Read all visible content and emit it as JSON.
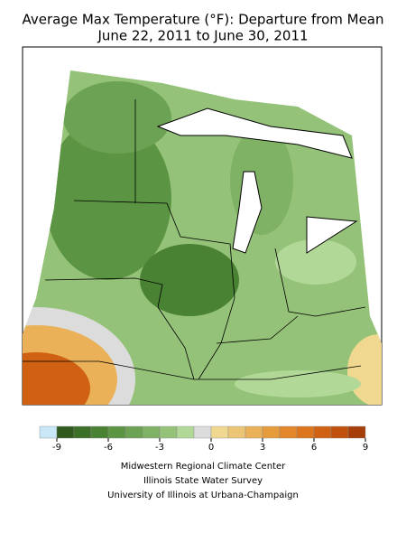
{
  "header": {
    "title": "Average Max Temperature (°F): Departure from Mean",
    "subtitle": "June 22, 2011 to June 30, 2011"
  },
  "legend": {
    "bins": [
      -10,
      -9,
      -8,
      -7,
      -6,
      -5,
      -4,
      -3,
      -2,
      -1,
      0,
      1,
      2,
      3,
      4,
      5,
      6,
      7,
      8,
      9
    ],
    "colors": [
      "#c8e8f8",
      "#2f5a1e",
      "#3c7029",
      "#4a8234",
      "#5b9443",
      "#6ca253",
      "#80b265",
      "#95c279",
      "#b2d897",
      "#dcdcdc",
      "#f1d890",
      "#ecc676",
      "#eab158",
      "#e69c3c",
      "#e3872a",
      "#dc751b",
      "#d06112",
      "#c0500c",
      "#a53e08"
    ],
    "ticks": [
      -9,
      -6,
      -3,
      0,
      3,
      6,
      9
    ]
  },
  "credits": [
    "Midwestern Regional Climate Center",
    "Illinois State Water Survey",
    "University of Illinois at Urbana-Champaign"
  ]
}
